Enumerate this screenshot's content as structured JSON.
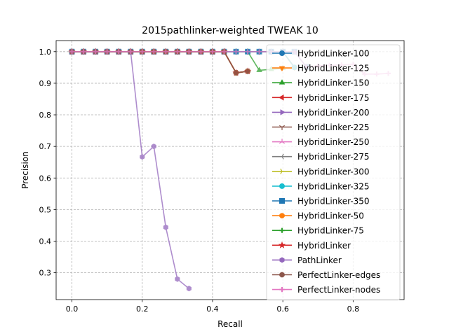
{
  "chart_data": {
    "type": "line",
    "title": "2015pathlinker-weighted TWEAK 10",
    "xlabel": "Recall",
    "ylabel": "Precision",
    "xlim": [
      -0.045,
      0.945
    ],
    "ylim": [
      0.215,
      1.035
    ],
    "xticks": [
      0.0,
      0.2,
      0.4,
      0.6,
      0.8
    ],
    "xtick_labels": [
      "0.0",
      "0.2",
      "0.4",
      "0.6",
      "0.8"
    ],
    "yticks": [
      0.3,
      0.4,
      0.5,
      0.6,
      0.7,
      0.8,
      0.9,
      1.0
    ],
    "ytick_labels": [
      "0.3",
      "0.4",
      "0.5",
      "0.6",
      "0.7",
      "0.8",
      "0.9",
      "1.0"
    ],
    "grid": true,
    "legend_position": "upper-right",
    "series": [
      {
        "name": "HybridLinker-100",
        "color": "#1f77b4",
        "marker": "circle",
        "x": [
          0.0,
          0.033,
          0.067,
          0.1,
          0.133,
          0.167,
          0.2,
          0.233,
          0.267,
          0.3,
          0.333,
          0.367,
          0.4,
          0.433,
          0.467,
          0.5,
          0.533,
          0.567,
          0.6,
          0.633
        ],
        "y": [
          1.0,
          1.0,
          1.0,
          1.0,
          1.0,
          1.0,
          1.0,
          1.0,
          1.0,
          1.0,
          1.0,
          1.0,
          1.0,
          1.0,
          1.0,
          1.0,
          1.0,
          1.0,
          1.0,
          0.95
        ]
      },
      {
        "name": "HybridLinker-125",
        "color": "#ff7f0e",
        "marker": "triangle-down",
        "x": [
          0.0,
          0.033,
          0.067,
          0.1,
          0.133,
          0.167,
          0.2,
          0.233,
          0.267,
          0.3,
          0.333,
          0.367,
          0.4,
          0.433,
          0.467,
          0.5,
          0.533,
          0.567,
          0.6,
          0.633
        ],
        "y": [
          1.0,
          1.0,
          1.0,
          1.0,
          1.0,
          1.0,
          1.0,
          1.0,
          1.0,
          1.0,
          1.0,
          1.0,
          1.0,
          1.0,
          1.0,
          1.0,
          1.0,
          1.0,
          1.0,
          0.95
        ]
      },
      {
        "name": "HybridLinker-150",
        "color": "#2ca02c",
        "marker": "triangle-up",
        "x": [
          0.0,
          0.033,
          0.067,
          0.1,
          0.133,
          0.167,
          0.2,
          0.233,
          0.267,
          0.3,
          0.333,
          0.367,
          0.4,
          0.433,
          0.467,
          0.5,
          0.533,
          0.567,
          0.6
        ],
        "y": [
          1.0,
          1.0,
          1.0,
          1.0,
          1.0,
          1.0,
          1.0,
          1.0,
          1.0,
          1.0,
          1.0,
          1.0,
          1.0,
          1.0,
          1.0,
          1.0,
          0.941,
          0.944,
          0.947
        ]
      },
      {
        "name": "HybridLinker-175",
        "color": "#d62728",
        "marker": "triangle-left",
        "x": [
          0.0,
          0.033,
          0.067,
          0.1,
          0.133,
          0.167,
          0.2,
          0.233,
          0.267,
          0.3,
          0.333,
          0.367,
          0.4,
          0.433,
          0.467,
          0.5
        ],
        "y": [
          1.0,
          1.0,
          1.0,
          1.0,
          1.0,
          1.0,
          1.0,
          1.0,
          1.0,
          1.0,
          1.0,
          1.0,
          1.0,
          1.0,
          0.933,
          0.938
        ]
      },
      {
        "name": "HybridLinker-200",
        "color": "#9467bd",
        "marker": "triangle-right",
        "x": [
          0.0,
          0.033,
          0.067,
          0.1,
          0.133,
          0.167,
          0.2,
          0.233,
          0.267,
          0.3,
          0.333,
          0.367,
          0.4,
          0.433,
          0.467,
          0.5
        ],
        "y": [
          1.0,
          1.0,
          1.0,
          1.0,
          1.0,
          1.0,
          1.0,
          1.0,
          1.0,
          1.0,
          1.0,
          1.0,
          1.0,
          1.0,
          0.933,
          0.938
        ]
      },
      {
        "name": "HybridLinker-225",
        "color": "#8c564b",
        "marker": "tri-down",
        "x": [
          0.0,
          0.033,
          0.067,
          0.1,
          0.133,
          0.167,
          0.2,
          0.233,
          0.267,
          0.3,
          0.333,
          0.367,
          0.4,
          0.433,
          0.467,
          0.5
        ],
        "y": [
          1.0,
          1.0,
          1.0,
          1.0,
          1.0,
          1.0,
          1.0,
          1.0,
          1.0,
          1.0,
          1.0,
          1.0,
          1.0,
          1.0,
          0.933,
          0.938
        ]
      },
      {
        "name": "HybridLinker-250",
        "color": "#e377c2",
        "marker": "tri-up",
        "x": [
          0.0,
          0.033,
          0.067,
          0.1,
          0.133,
          0.167,
          0.2,
          0.233,
          0.267,
          0.3,
          0.333,
          0.367,
          0.4,
          0.433,
          0.467,
          0.5
        ],
        "y": [
          1.0,
          1.0,
          1.0,
          1.0,
          1.0,
          1.0,
          1.0,
          1.0,
          1.0,
          1.0,
          1.0,
          1.0,
          1.0,
          1.0,
          0.933,
          0.938
        ]
      },
      {
        "name": "HybridLinker-275",
        "color": "#7f7f7f",
        "marker": "tri-left",
        "x": [
          0.0,
          0.033,
          0.067,
          0.1,
          0.133,
          0.167,
          0.2,
          0.233,
          0.267,
          0.3,
          0.333,
          0.367,
          0.4,
          0.433,
          0.467,
          0.5
        ],
        "y": [
          1.0,
          1.0,
          1.0,
          1.0,
          1.0,
          1.0,
          1.0,
          1.0,
          1.0,
          1.0,
          1.0,
          1.0,
          1.0,
          1.0,
          0.933,
          0.938
        ]
      },
      {
        "name": "HybridLinker-300",
        "color": "#bcbd22",
        "marker": "tri-right",
        "x": [
          0.0,
          0.033,
          0.067,
          0.1,
          0.133,
          0.167,
          0.2,
          0.233,
          0.267,
          0.3,
          0.333,
          0.367,
          0.4,
          0.433,
          0.467,
          0.5
        ],
        "y": [
          1.0,
          1.0,
          1.0,
          1.0,
          1.0,
          1.0,
          1.0,
          1.0,
          1.0,
          1.0,
          1.0,
          1.0,
          1.0,
          1.0,
          0.933,
          0.938
        ]
      },
      {
        "name": "HybridLinker-325",
        "color": "#17becf",
        "marker": "circle",
        "x": [
          0.0,
          0.033,
          0.067,
          0.1,
          0.133,
          0.167,
          0.2,
          0.233,
          0.267,
          0.3,
          0.333,
          0.367,
          0.4,
          0.433,
          0.467,
          0.5,
          0.533,
          0.567,
          0.6,
          0.633
        ],
        "y": [
          1.0,
          1.0,
          1.0,
          1.0,
          1.0,
          1.0,
          1.0,
          1.0,
          1.0,
          1.0,
          1.0,
          1.0,
          1.0,
          1.0,
          1.0,
          1.0,
          1.0,
          1.0,
          1.0,
          0.95
        ]
      },
      {
        "name": "HybridLinker-350",
        "color": "#1f77b4",
        "marker": "square",
        "x": [
          0.0,
          0.033,
          0.067,
          0.1,
          0.133,
          0.167,
          0.2,
          0.233,
          0.267,
          0.3,
          0.333,
          0.367,
          0.4,
          0.433,
          0.467,
          0.5,
          0.533,
          0.567,
          0.6,
          0.633,
          0.667
        ],
        "y": [
          1.0,
          1.0,
          1.0,
          1.0,
          1.0,
          1.0,
          1.0,
          1.0,
          1.0,
          1.0,
          1.0,
          1.0,
          1.0,
          1.0,
          1.0,
          1.0,
          1.0,
          1.0,
          1.0,
          1.0,
          0.952
        ]
      },
      {
        "name": "HybridLinker-50",
        "color": "#ff7f0e",
        "marker": "octagon",
        "x": [
          0.0,
          0.033,
          0.067,
          0.1,
          0.133,
          0.167,
          0.2,
          0.233,
          0.267,
          0.3,
          0.333,
          0.367,
          0.4,
          0.433,
          0.467,
          0.5
        ],
        "y": [
          1.0,
          1.0,
          1.0,
          1.0,
          1.0,
          1.0,
          1.0,
          1.0,
          1.0,
          1.0,
          1.0,
          1.0,
          1.0,
          1.0,
          0.933,
          0.938
        ]
      },
      {
        "name": "HybridLinker-75",
        "color": "#2ca02c",
        "marker": "plus",
        "x": [
          0.0,
          0.033,
          0.067,
          0.1,
          0.133,
          0.167,
          0.2,
          0.233,
          0.267,
          0.3,
          0.333,
          0.367,
          0.4,
          0.433,
          0.467,
          0.5
        ],
        "y": [
          1.0,
          1.0,
          1.0,
          1.0,
          1.0,
          1.0,
          1.0,
          1.0,
          1.0,
          1.0,
          1.0,
          1.0,
          1.0,
          1.0,
          0.933,
          0.938
        ]
      },
      {
        "name": "HybridLinker",
        "color": "#d62728",
        "marker": "star",
        "x": [
          0.0,
          0.033,
          0.067,
          0.1,
          0.133,
          0.167,
          0.2,
          0.233,
          0.267,
          0.3,
          0.333,
          0.367,
          0.4,
          0.433,
          0.467,
          0.5
        ],
        "y": [
          1.0,
          1.0,
          1.0,
          1.0,
          1.0,
          1.0,
          1.0,
          1.0,
          1.0,
          1.0,
          1.0,
          1.0,
          1.0,
          1.0,
          0.933,
          0.938
        ]
      },
      {
        "name": "PathLinker",
        "color": "#9467bd",
        "marker": "hexagon",
        "x": [
          0.0,
          0.033,
          0.067,
          0.1,
          0.133,
          0.167,
          0.2,
          0.233,
          0.267,
          0.3,
          0.333
        ],
        "y": [
          1.0,
          1.0,
          1.0,
          1.0,
          1.0,
          1.0,
          0.667,
          0.7,
          0.444,
          0.28,
          0.25
        ]
      },
      {
        "name": "PerfectLinker-edges",
        "color": "#8c564b",
        "marker": "octagon",
        "x": [
          0.0,
          0.033,
          0.067,
          0.1,
          0.133,
          0.167,
          0.2,
          0.233,
          0.267,
          0.3,
          0.333,
          0.367,
          0.4,
          0.433,
          0.467,
          0.5
        ],
        "y": [
          1.0,
          1.0,
          1.0,
          1.0,
          1.0,
          1.0,
          1.0,
          1.0,
          1.0,
          1.0,
          1.0,
          1.0,
          1.0,
          1.0,
          0.933,
          0.938
        ]
      },
      {
        "name": "PerfectLinker-nodes",
        "color": "#e377c2",
        "marker": "plus",
        "x": [
          0.0,
          0.033,
          0.067,
          0.1,
          0.133,
          0.167,
          0.2,
          0.233,
          0.267,
          0.3,
          0.333,
          0.367,
          0.4,
          0.433,
          0.467,
          0.5,
          0.533,
          0.567,
          0.6,
          0.633,
          0.667,
          0.7,
          0.733,
          0.767,
          0.8,
          0.833,
          0.867,
          0.9
        ],
        "y": [
          1.0,
          1.0,
          1.0,
          1.0,
          1.0,
          1.0,
          1.0,
          1.0,
          1.0,
          1.0,
          1.0,
          1.0,
          1.0,
          1.0,
          1.0,
          1.0,
          1.0,
          1.0,
          1.0,
          1.0,
          0.952,
          0.955,
          0.957,
          0.958,
          0.96,
          0.929,
          0.929,
          0.931
        ]
      }
    ]
  }
}
